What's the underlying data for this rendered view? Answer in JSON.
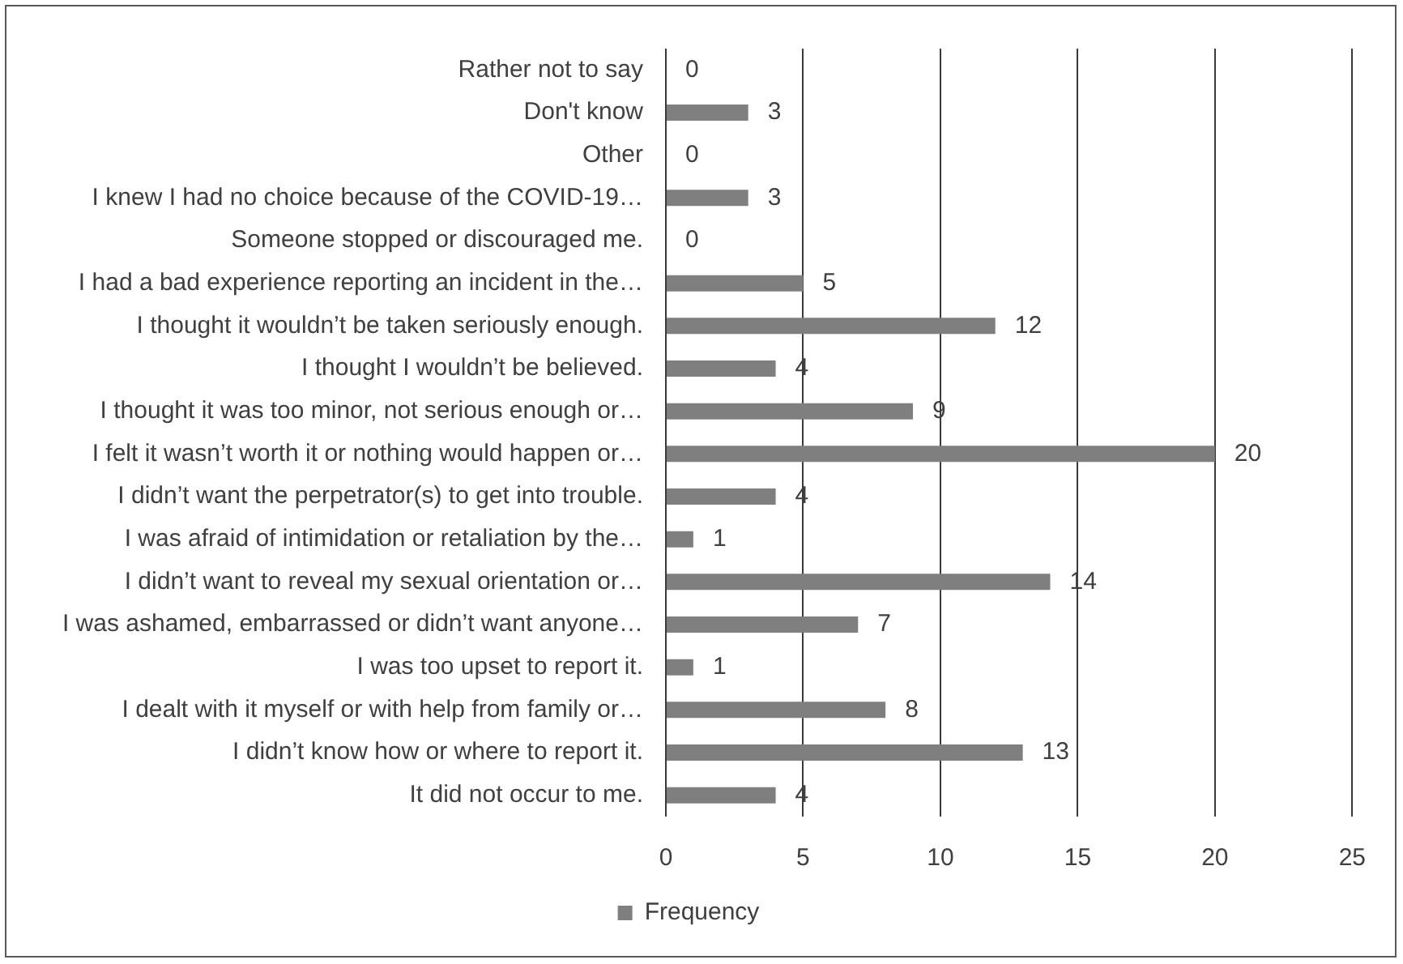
{
  "chart_data": {
    "type": "bar",
    "orientation": "horizontal",
    "categories": [
      "Rather not to say",
      "Don't know",
      "Other",
      "I knew I had no choice because of the COVID-19…",
      "Someone stopped or discouraged me.",
      "I had a bad experience reporting an incident in the…",
      "I thought it wouldn’t be taken seriously enough.",
      "I thought I wouldn’t be believed.",
      "I thought it was too minor, not serious enough or…",
      "I felt it wasn’t worth it or nothing would happen or…",
      "I didn’t want the perpetrator(s) to get into trouble.",
      "I was afraid of intimidation or retaliation by the…",
      "I didn’t want to reveal my sexual orientation or…",
      "I was ashamed, embarrassed or didn’t want anyone…",
      "I was too upset to report it.",
      "I dealt with it myself or with help from family or…",
      "I didn’t know how or where to report it.",
      "It did not occur to me."
    ],
    "series": [
      {
        "name": "Frequency",
        "color": "#7f7f7f",
        "values": [
          0,
          3,
          0,
          3,
          0,
          5,
          12,
          4,
          9,
          20,
          4,
          1,
          14,
          7,
          1,
          8,
          13,
          4
        ]
      }
    ],
    "xlim": [
      0,
      25
    ],
    "xticks": [
      0,
      5,
      10,
      15,
      20,
      25
    ],
    "grid": "x",
    "legend": "bottom",
    "data_labels": true
  }
}
